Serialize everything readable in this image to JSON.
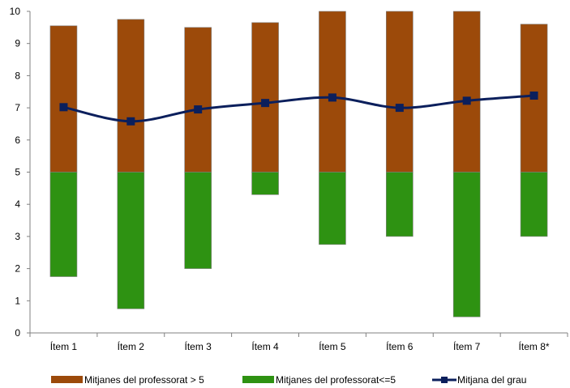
{
  "chart_data": {
    "type": "bar",
    "categories": [
      "Ítem 1",
      "Ítem 2",
      "Ítem 3",
      "Ítem 4",
      "Ítem 5",
      "Ítem 6",
      "Ítem 7",
      "Ítem 8*"
    ],
    "baseline": 5,
    "ylim": [
      0,
      10
    ],
    "yticks": [
      0,
      1,
      2,
      3,
      4,
      5,
      6,
      7,
      8,
      9,
      10
    ],
    "grid": false,
    "legend_position": "bottom",
    "series": [
      {
        "name": "Mitjanes del professorat > 5",
        "kind": "bar",
        "color": "#9C4A0A",
        "values": [
          9.55,
          9.75,
          9.5,
          9.65,
          10,
          10,
          10,
          9.6
        ]
      },
      {
        "name": "Mitjanes del professorat<=5",
        "kind": "bar",
        "color": "#2E9212",
        "values": [
          1.75,
          0.75,
          2.0,
          4.3,
          2.75,
          3.0,
          0.5,
          3.0
        ]
      },
      {
        "name": "Mitjana del grau",
        "kind": "line",
        "color": "#0B1F5C",
        "values": [
          7.02,
          6.58,
          6.95,
          7.15,
          7.32,
          7.0,
          7.22,
          7.38
        ]
      }
    ]
  }
}
